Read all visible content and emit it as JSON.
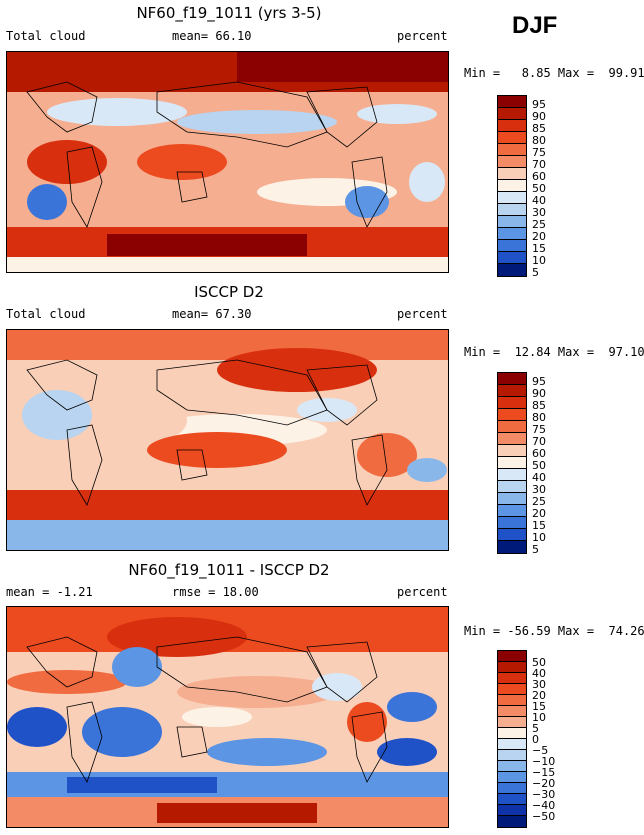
{
  "season": "DJF",
  "colors": {
    "warm_levels": [
      "#8b0000",
      "#b51a00",
      "#d8300e",
      "#ec4a1f",
      "#f06b40",
      "#f28b66",
      "#f5ae90",
      "#f9cfb8",
      "#fdf2e6",
      "#d9e8f6",
      "#b8d4f0",
      "#8ab7ea",
      "#5b95e4",
      "#3a74d9",
      "#2052c7",
      "#1032a8",
      "#001a7a"
    ],
    "land_outline": "#000000"
  },
  "panels": [
    {
      "title": "NF60_f19_1011 (yrs 3-5)",
      "left_label": "Total cloud",
      "mid_label": "mean=  66.10",
      "unit": "percent",
      "minmax": "Min =   8.85 Max =  99.91",
      "colorbar_labels": [
        "95",
        "90",
        "85",
        "80",
        "75",
        "70",
        "60",
        "50",
        "40",
        "30",
        "25",
        "20",
        "15",
        "10",
        "5"
      ]
    },
    {
      "title": "ISCCP D2",
      "left_label": "Total cloud",
      "mid_label": "mean=  67.30",
      "unit": "percent",
      "minmax": "Min =  12.84 Max =  97.10",
      "colorbar_labels": [
        "95",
        "90",
        "85",
        "80",
        "75",
        "70",
        "60",
        "50",
        "40",
        "30",
        "25",
        "20",
        "15",
        "10",
        "5"
      ]
    },
    {
      "title": "NF60_f19_1011 - ISCCP D2",
      "left_label": "mean =  -1.21",
      "mid_label": "rmse =  18.00",
      "unit": "percent",
      "minmax": "Min = -56.59 Max =  74.26",
      "colorbar_labels": [
        "50",
        "40",
        "30",
        "20",
        "15",
        "10",
        "5",
        "0",
        "−5",
        "−10",
        "−15",
        "−20",
        "−30",
        "−40",
        "−50"
      ]
    }
  ]
}
